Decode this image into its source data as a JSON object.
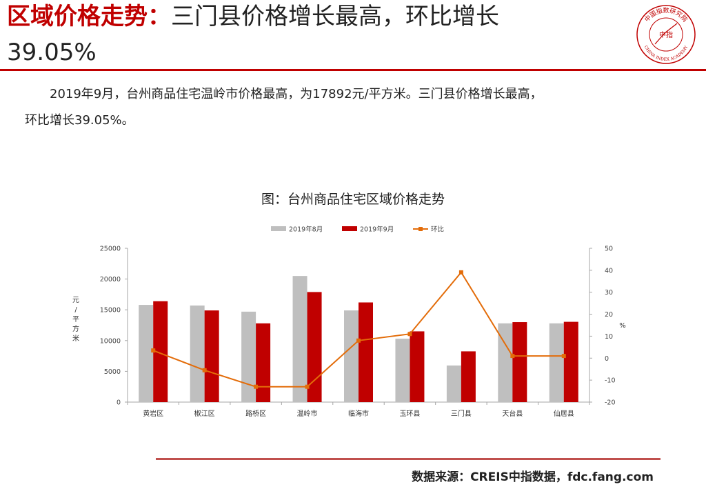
{
  "header": {
    "title_red": "区域价格走势：",
    "title_black": "三门县价格增长最高，环比增长",
    "title_line2": "39.05%"
  },
  "logo": {
    "top_text": "中国指数研究院",
    "bottom_text": "CHINA INDEX ACADEMY",
    "center_text": "中指"
  },
  "body": {
    "line1": "2019年9月，台州商品住宅温岭市价格最高，为17892元/平方米。三门县价格增长最高，",
    "line2": "环比增长39.05%。"
  },
  "chart_title": "图：台州商品住宅区域价格走势",
  "chart_data": {
    "type": "bar",
    "categories": [
      "黄岩区",
      "椒江区",
      "路桥区",
      "温岭市",
      "临海市",
      "玉环县",
      "三门县",
      "天台县",
      "仙居县"
    ],
    "series": [
      {
        "name": "2019年8月",
        "type": "bar",
        "axis": "left",
        "color": "#bfbfbf",
        "values": [
          15800,
          15700,
          14700,
          20500,
          14900,
          10300,
          5950,
          12800,
          12800
        ]
      },
      {
        "name": "2019年9月",
        "type": "bar",
        "axis": "left",
        "color": "#c00000",
        "values": [
          16400,
          14900,
          12800,
          17892,
          16200,
          11500,
          8250,
          13000,
          13050
        ]
      },
      {
        "name": "环比",
        "type": "line",
        "axis": "right",
        "color": "#e36c09",
        "values": [
          3.5,
          -5.5,
          -13,
          -13,
          8,
          11,
          39.05,
          1,
          1
        ]
      }
    ],
    "ylabel": "元/平方米",
    "y2label": "%",
    "ylim": [
      0,
      25000
    ],
    "y2lim": [
      -20,
      50
    ],
    "yticks": [
      0,
      5000,
      10000,
      15000,
      20000,
      25000
    ],
    "y2ticks": [
      -20,
      -10,
      0,
      10,
      20,
      30,
      40,
      50
    ],
    "legend": "top",
    "grid": false
  },
  "footer": {
    "source": "数据来源：CREIS中指数据，fdc.fang.com"
  }
}
